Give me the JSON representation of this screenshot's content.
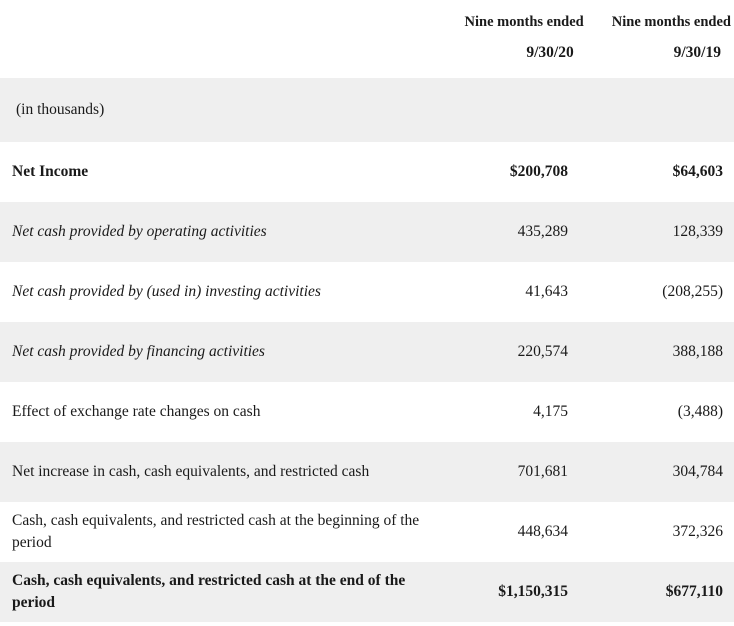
{
  "table": {
    "header": {
      "col2020": {
        "period": "Nine months ended",
        "date": "9/30/20"
      },
      "col2019": {
        "period": "Nine months ended",
        "date": "9/30/19"
      }
    },
    "units_note": "(in thousands)",
    "rows": [
      {
        "label": "Net Income",
        "v2020": "$200,708",
        "v2019": "$64,603"
      },
      {
        "label": "Net cash provided by operating activities",
        "v2020": "435,289",
        "v2019": "128,339"
      },
      {
        "label": "Net cash provided by (used in) investing activities",
        "v2020": "41,643",
        "v2019": "(208,255)"
      },
      {
        "label": "Net cash provided by financing activities",
        "v2020": "220,574",
        "v2019": "388,188"
      },
      {
        "label": "Effect of exchange rate changes on cash",
        "v2020": "4,175",
        "v2019": "(3,488)"
      },
      {
        "label": "Net increase in cash, cash equivalents, and restricted cash",
        "v2020": "701,681",
        "v2019": "304,784"
      },
      {
        "label": "Cash, cash equivalents, and restricted cash at the beginning of the period",
        "v2020": "448,634",
        "v2019": "372,326"
      },
      {
        "label": "Cash, cash equivalents, and restricted cash at the end of the period",
        "v2020": "$1,150,315",
        "v2019": "$677,110"
      }
    ],
    "colors": {
      "row_alt_bg": "#efefef",
      "text": "#1a1a1a"
    }
  }
}
